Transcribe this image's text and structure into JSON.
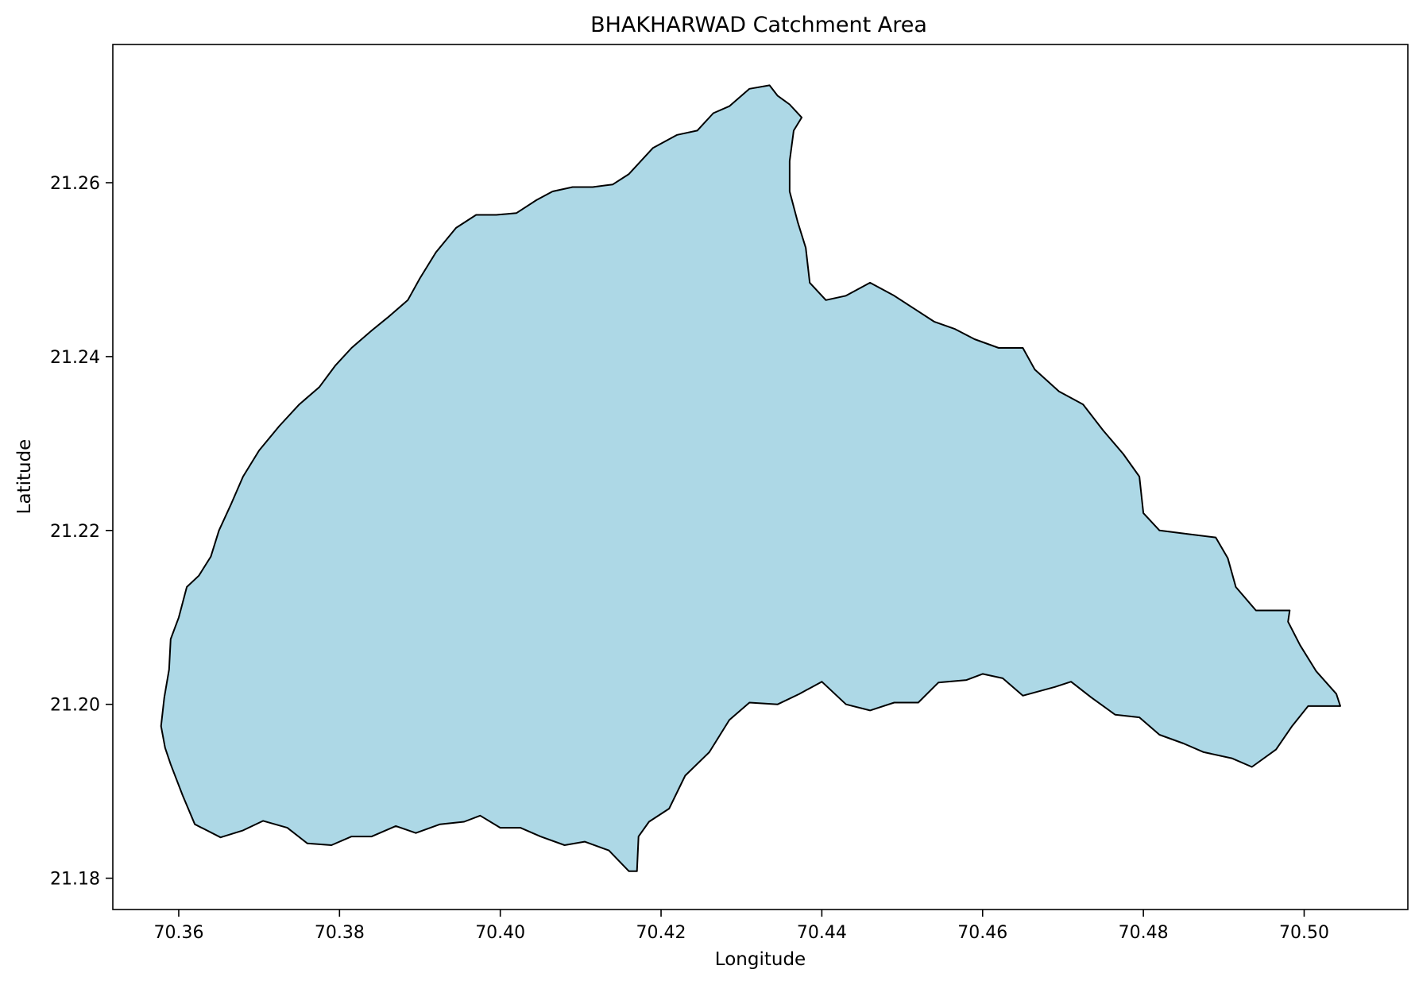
{
  "chart_data": {
    "type": "map",
    "title": "BHAKHARWAD Catchment Area",
    "xlabel": "Longitude",
    "ylabel": "Latitude",
    "xlim": [
      70.3518,
      70.5129
    ],
    "ylim": [
      21.1764,
      21.2759
    ],
    "xticks": [
      "70.36",
      "70.38",
      "70.40",
      "70.42",
      "70.44",
      "70.46",
      "70.48",
      "70.50"
    ],
    "xtick_values": [
      70.36,
      70.38,
      70.4,
      70.42,
      70.44,
      70.46,
      70.48,
      70.5
    ],
    "yticks": [
      "21.18",
      "21.20",
      "21.22",
      "21.24",
      "21.26"
    ],
    "ytick_values": [
      21.18,
      21.2,
      21.22,
      21.24,
      21.26
    ],
    "grid": false,
    "fill_color": "#add8e6",
    "edge_color": "#000000",
    "boundary": [
      [
        70.359,
        21.1931
      ],
      [
        70.3605,
        21.1895
      ],
      [
        70.362,
        21.1862
      ],
      [
        70.3652,
        21.1847
      ],
      [
        70.368,
        21.1855
      ],
      [
        70.3705,
        21.1866
      ],
      [
        70.3735,
        21.1858
      ],
      [
        70.376,
        21.184
      ],
      [
        70.379,
        21.1838
      ],
      [
        70.3815,
        21.1848
      ],
      [
        70.384,
        21.1848
      ],
      [
        70.387,
        21.186
      ],
      [
        70.3895,
        21.1852
      ],
      [
        70.3925,
        21.1862
      ],
      [
        70.3955,
        21.1865
      ],
      [
        70.3975,
        21.1872
      ],
      [
        70.4,
        21.1858
      ],
      [
        70.4025,
        21.1858
      ],
      [
        70.405,
        21.1848
      ],
      [
        70.408,
        21.1838
      ],
      [
        70.4105,
        21.1842
      ],
      [
        70.4135,
        21.1832
      ],
      [
        70.416,
        21.1808
      ],
      [
        70.417,
        21.1808
      ],
      [
        70.4172,
        21.1848
      ],
      [
        70.4185,
        21.1865
      ],
      [
        70.421,
        21.188
      ],
      [
        70.423,
        21.1918
      ],
      [
        70.426,
        21.1945
      ],
      [
        70.4285,
        21.1982
      ],
      [
        70.431,
        21.2002
      ],
      [
        70.4345,
        21.2
      ],
      [
        70.4372,
        21.2012
      ],
      [
        70.44,
        21.2026
      ],
      [
        70.443,
        21.2
      ],
      [
        70.446,
        21.1993
      ],
      [
        70.449,
        21.2002
      ],
      [
        70.452,
        21.2002
      ],
      [
        70.4545,
        21.2025
      ],
      [
        70.458,
        21.2028
      ],
      [
        70.46,
        21.2035
      ],
      [
        70.4625,
        21.203
      ],
      [
        70.465,
        21.201
      ],
      [
        70.469,
        21.202
      ],
      [
        70.471,
        21.2026
      ],
      [
        70.4735,
        21.2008
      ],
      [
        70.4765,
        21.1988
      ],
      [
        70.4795,
        21.1985
      ],
      [
        70.482,
        21.1965
      ],
      [
        70.485,
        21.1955
      ],
      [
        70.4875,
        21.1945
      ],
      [
        70.491,
        21.1938
      ],
      [
        70.4935,
        21.1928
      ],
      [
        70.4965,
        21.1948
      ],
      [
        70.4985,
        21.1975
      ],
      [
        70.5005,
        21.1998
      ],
      [
        70.5045,
        21.1998
      ],
      [
        70.504,
        21.2012
      ],
      [
        70.5015,
        21.2038
      ],
      [
        70.4995,
        21.2068
      ],
      [
        70.498,
        21.2095
      ],
      [
        70.4982,
        21.2108
      ],
      [
        70.494,
        21.2108
      ],
      [
        70.4915,
        21.2135
      ],
      [
        70.4905,
        21.2168
      ],
      [
        70.489,
        21.2192
      ],
      [
        70.4855,
        21.2196
      ],
      [
        70.482,
        21.22
      ],
      [
        70.48,
        21.222
      ],
      [
        70.4795,
        21.2262
      ],
      [
        70.4775,
        21.2288
      ],
      [
        70.475,
        21.2315
      ],
      [
        70.4725,
        21.2345
      ],
      [
        70.4695,
        21.236
      ],
      [
        70.4665,
        21.2385
      ],
      [
        70.465,
        21.241
      ],
      [
        70.462,
        21.241
      ],
      [
        70.459,
        21.242
      ],
      [
        70.4565,
        21.2432
      ],
      [
        70.454,
        21.244
      ],
      [
        70.4515,
        21.2455
      ],
      [
        70.449,
        21.247
      ],
      [
        70.446,
        21.2485
      ],
      [
        70.443,
        21.247
      ],
      [
        70.4405,
        21.2465
      ],
      [
        70.4385,
        21.2485
      ],
      [
        70.438,
        21.2525
      ],
      [
        70.437,
        21.2555
      ],
      [
        70.436,
        21.259
      ],
      [
        70.436,
        21.2625
      ],
      [
        70.4365,
        21.266
      ],
      [
        70.4375,
        21.2675
      ],
      [
        70.436,
        21.269
      ],
      [
        70.4345,
        21.27
      ],
      [
        70.4335,
        21.2712
      ],
      [
        70.431,
        21.2708
      ],
      [
        70.4285,
        21.2688
      ],
      [
        70.4265,
        21.268
      ],
      [
        70.4245,
        21.266
      ],
      [
        70.422,
        21.2655
      ],
      [
        70.419,
        21.264
      ],
      [
        70.416,
        21.261
      ],
      [
        70.414,
        21.2598
      ],
      [
        70.4115,
        21.2595
      ],
      [
        70.409,
        21.2595
      ],
      [
        70.4065,
        21.259
      ],
      [
        70.4045,
        21.258
      ],
      [
        70.402,
        21.2565
      ],
      [
        70.3995,
        21.2563
      ],
      [
        70.397,
        21.2563
      ],
      [
        70.3945,
        21.2548
      ],
      [
        70.392,
        21.252
      ],
      [
        70.39,
        21.249
      ],
      [
        70.3885,
        21.2465
      ],
      [
        70.386,
        21.2445
      ],
      [
        70.384,
        21.243
      ],
      [
        70.3815,
        21.241
      ],
      [
        70.3795,
        21.239
      ],
      [
        70.3775,
        21.2365
      ],
      [
        70.375,
        21.2345
      ],
      [
        70.3725,
        21.232
      ],
      [
        70.37,
        21.2292
      ],
      [
        70.368,
        21.2262
      ],
      [
        70.3665,
        21.223
      ],
      [
        70.365,
        21.22
      ],
      [
        70.364,
        21.217
      ],
      [
        70.3625,
        21.2148
      ],
      [
        70.361,
        21.2135
      ],
      [
        70.36,
        21.21
      ],
      [
        70.359,
        21.2075
      ],
      [
        70.3588,
        21.204
      ],
      [
        70.3582,
        21.2008
      ],
      [
        70.3578,
        21.1975
      ],
      [
        70.3583,
        21.195
      ],
      [
        70.359,
        21.1931
      ]
    ]
  }
}
